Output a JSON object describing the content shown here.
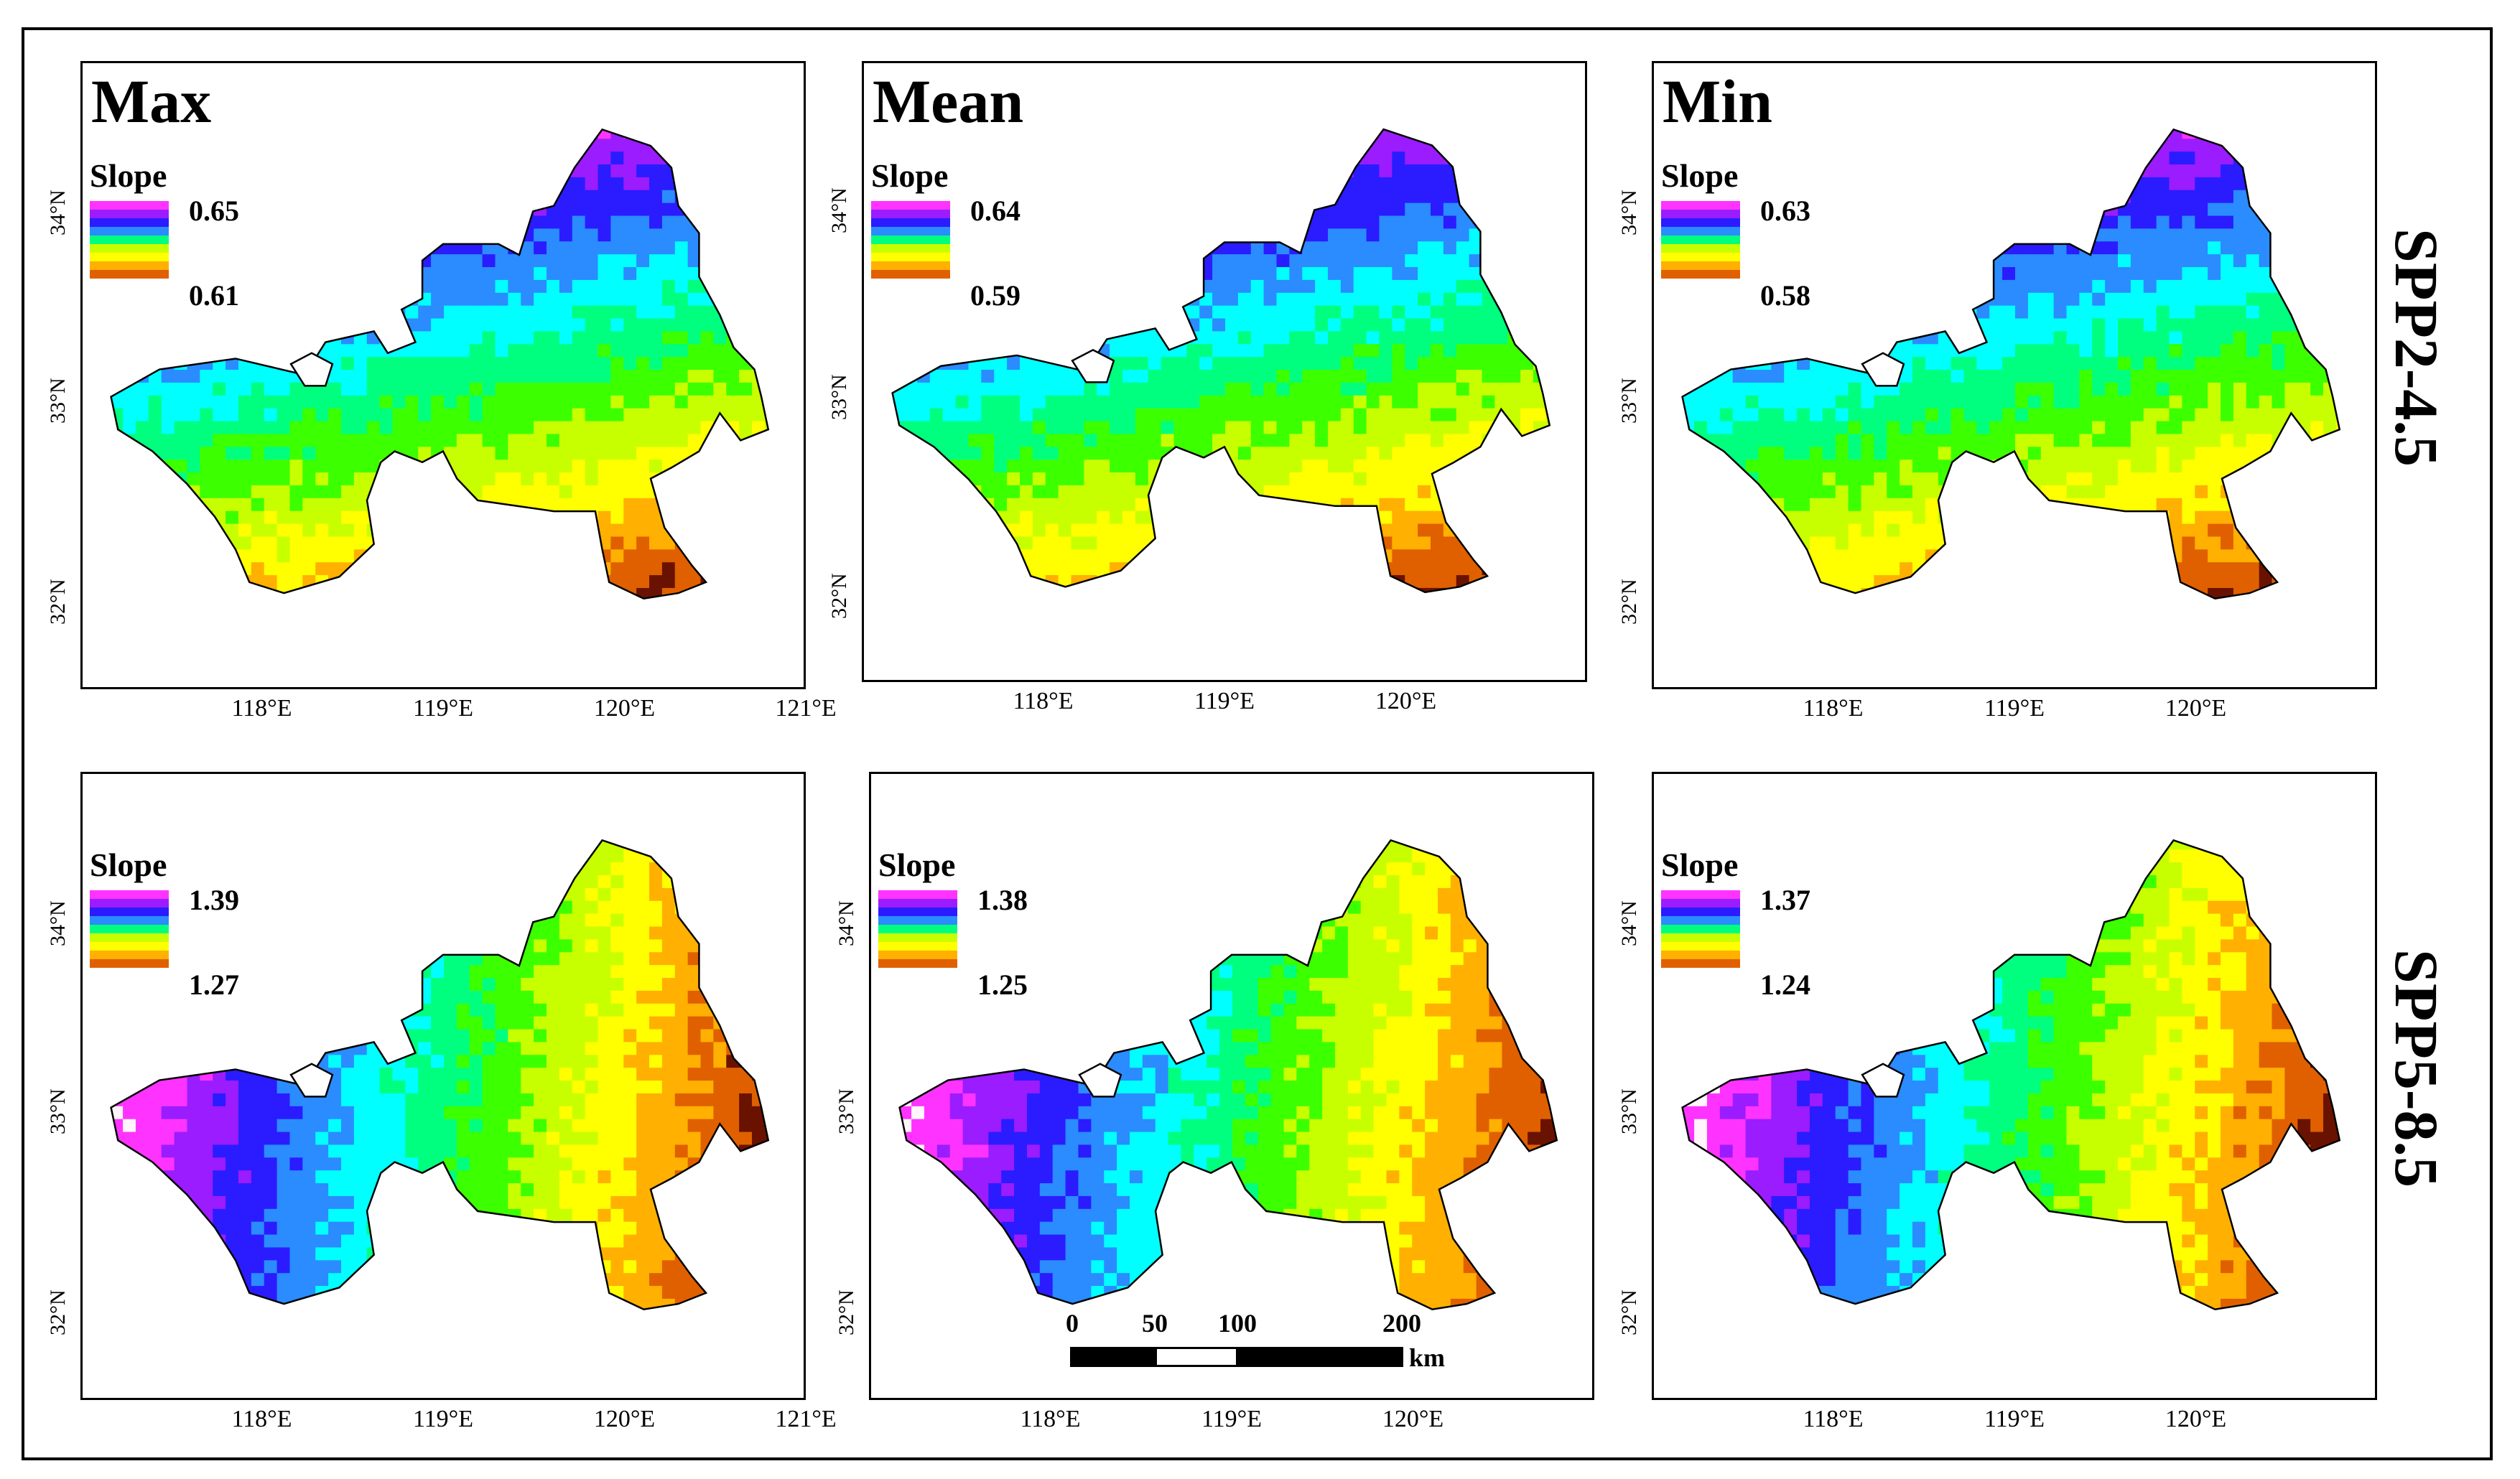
{
  "figure": {
    "row_labels": [
      "SPP2-4.5",
      "SPP5-8.5"
    ],
    "column_titles": [
      "Max",
      "Mean",
      "Min"
    ],
    "legend_title": "Slope",
    "panels": [
      {
        "scenario": "SPP2-4.5",
        "stat": "Max",
        "legend_high": "0.65",
        "legend_low": "0.61",
        "pattern": "north-south"
      },
      {
        "scenario": "SPP2-4.5",
        "stat": "Mean",
        "legend_high": "0.64",
        "legend_low": "0.59",
        "pattern": "north-south"
      },
      {
        "scenario": "SPP2-4.5",
        "stat": "Min",
        "legend_high": "0.63",
        "legend_low": "0.58",
        "pattern": "north-south"
      },
      {
        "scenario": "SPP5-8.5",
        "stat": "Max",
        "legend_high": "1.39",
        "legend_low": "1.27",
        "pattern": "west-east"
      },
      {
        "scenario": "SPP5-8.5",
        "stat": "Mean",
        "legend_high": "1.38",
        "legend_low": "1.25",
        "pattern": "west-east"
      },
      {
        "scenario": "SPP5-8.5",
        "stat": "Min",
        "legend_high": "1.37",
        "legend_low": "1.24",
        "pattern": "west-east"
      }
    ],
    "lat_ticks": [
      "32°N",
      "33°N",
      "34°N"
    ],
    "lon_ticks": [
      "118°E",
      "119°E",
      "120°E"
    ],
    "lon_tick_end": "121°E",
    "scale_bar": {
      "ticks": [
        "0",
        "50",
        "100",
        "200"
      ],
      "unit": "km"
    },
    "colormap": [
      "#fff5fb",
      "#ff33ff",
      "#9b1cff",
      "#2a1cff",
      "#2a8cff",
      "#00ffff",
      "#00ff7f",
      "#3cff00",
      "#c8ff00",
      "#ffff00",
      "#ffb000",
      "#e06000",
      "#6a1200"
    ]
  }
}
